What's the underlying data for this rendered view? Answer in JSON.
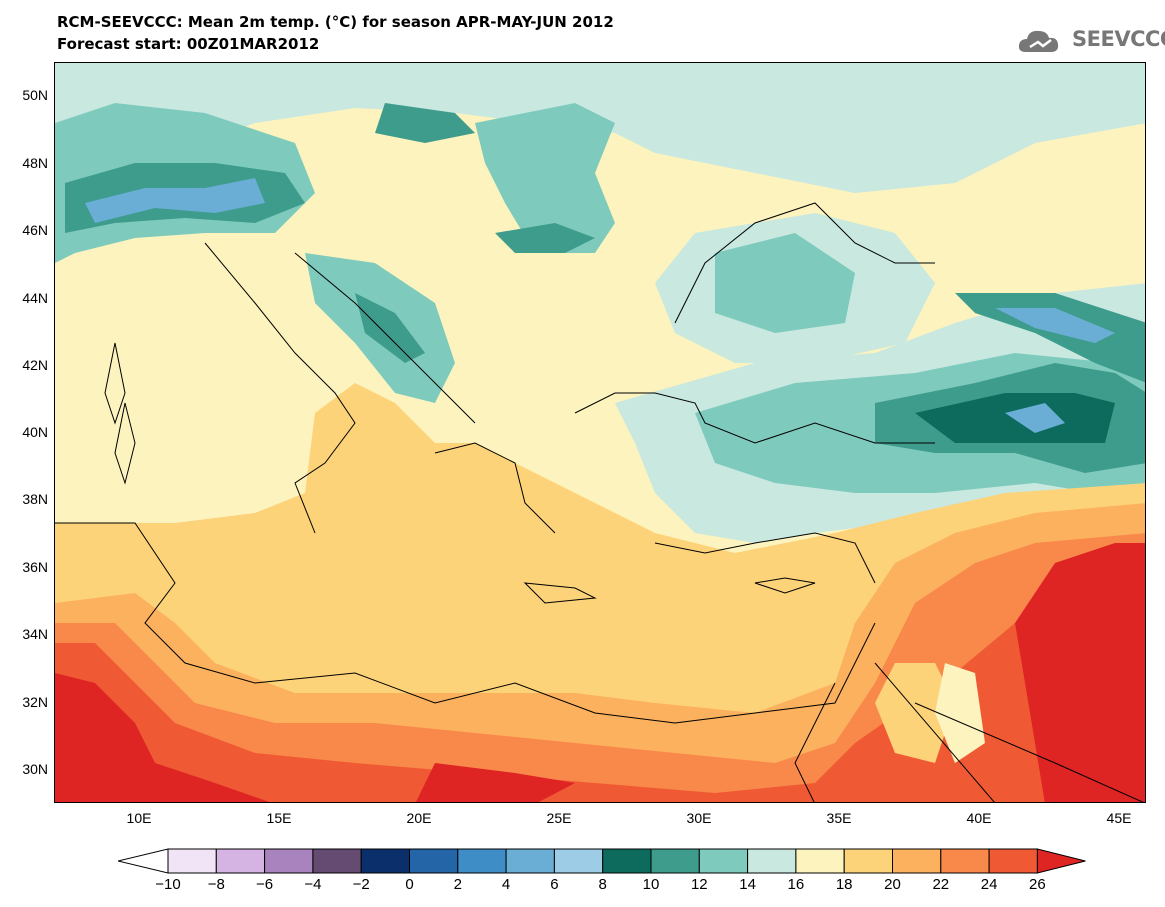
{
  "header": {
    "title_line1": "RCM-SEEVCCC: Mean 2m temp. (°C) for season APR-MAY-JUN 2012",
    "title_line2": "Forecast start: 00Z01MAR2012",
    "logo_text": "SEEVCCC"
  },
  "map": {
    "lat_labels": [
      "50N",
      "48N",
      "46N",
      "44N",
      "42N",
      "40N",
      "38N",
      "36N",
      "34N",
      "32N",
      "30N"
    ],
    "lon_labels": [
      "10E",
      "15E",
      "20E",
      "25E",
      "30E",
      "35E",
      "40E",
      "45E"
    ],
    "lat_range": [
      29,
      51
    ],
    "lon_range": [
      7,
      46
    ],
    "colors": {
      "ocean_frame": "#000000",
      "c16_18": "#fdf3bf",
      "c14_16": "#c8e8e0",
      "c12_14": "#7ecbbd",
      "c10_12": "#3e9c8c",
      "c8_10": "#0d6b5d",
      "c6_8": "#9dcce6",
      "c4_6": "#6aaed6",
      "c2_4": "#3f8dc6",
      "c18_20": "#fdd37a",
      "c20_22": "#fbb15e",
      "c22_24": "#f8894a",
      "c24_26": "#ef5a35",
      "c26_plus": "#df2424"
    }
  },
  "colorbar": {
    "labels": [
      "−10",
      "−8",
      "−6",
      "−4",
      "−2",
      "0",
      "2",
      "4",
      "6",
      "8",
      "10",
      "12",
      "14",
      "16",
      "18",
      "20",
      "22",
      "24",
      "26"
    ],
    "colors": [
      "#ffffff",
      "#f0e4f6",
      "#d5b3e2",
      "#a983bd",
      "#654a72",
      "#0b2f6b",
      "#2465a7",
      "#3f8dc6",
      "#6aaed6",
      "#9dcce6",
      "#0d6b5d",
      "#3e9c8c",
      "#7ecbbd",
      "#c8e8e0",
      "#fdf3bf",
      "#fdd37a",
      "#fbb15e",
      "#f8894a",
      "#ef5a35",
      "#df2424"
    ]
  }
}
